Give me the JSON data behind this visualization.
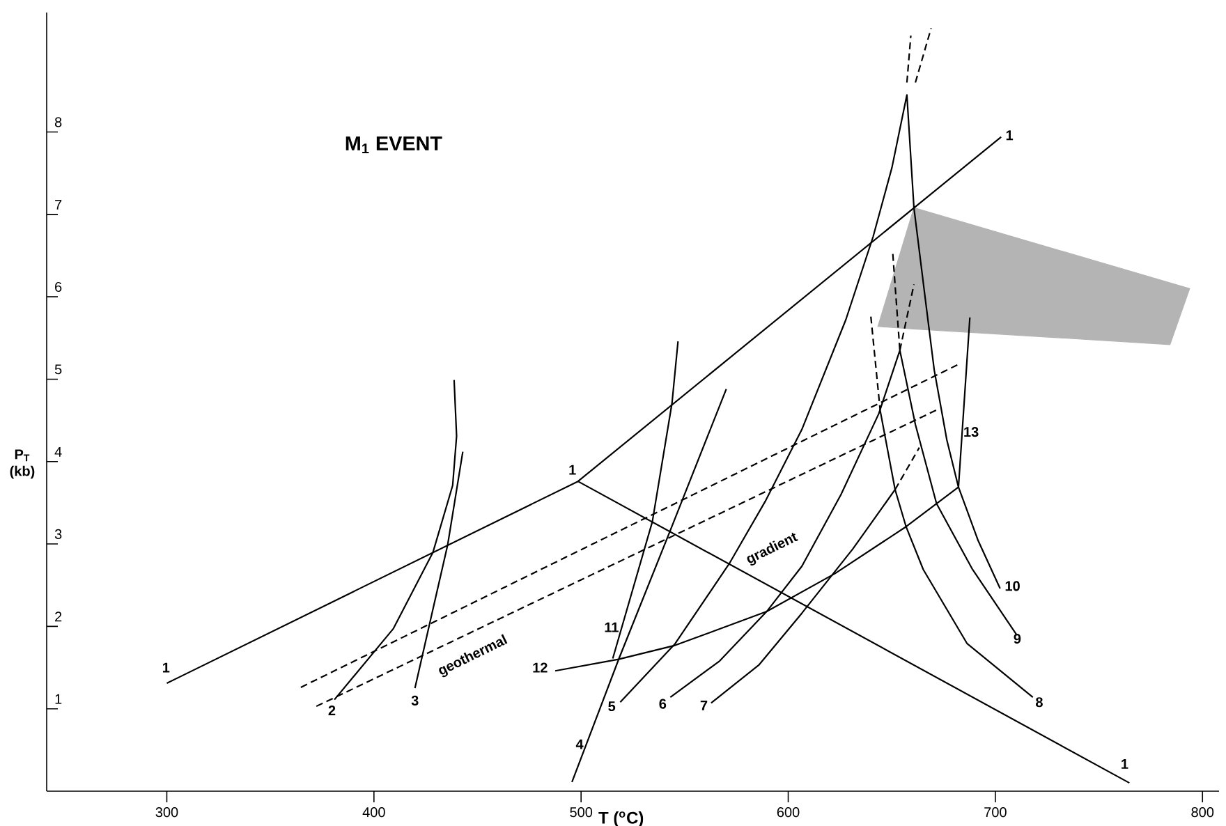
{
  "chart_data": {
    "type": "line",
    "title": "M$_{1}$ EVENT",
    "xlabel": "T  ($^{o}$C)",
    "ylabel": "P$_{T}$ (kb)",
    "xlim": [
      242,
      808
    ],
    "ylim": [
      0,
      9.45
    ],
    "xticks": [
      300,
      400,
      500,
      600,
      700,
      800
    ],
    "yticks": [
      1,
      2,
      3,
      4,
      5,
      6,
      7,
      8
    ],
    "series": [
      {
        "color": "#000000",
        "x": [
          300,
          498.5,
          702.8
        ],
        "values": [
          1.31,
          3.76,
          7.94
        ]
      },
      {
        "color": "#000000",
        "x": [
          498.5,
          764.7
        ],
        "values": [
          3.76,
          0.1
        ]
      },
      {
        "color": "#000000",
        "x": [
          380.9,
          409.3,
          428.5,
          438.0,
          439.9,
          438.7
        ],
        "values": [
          1.11,
          1.97,
          2.9,
          3.71,
          4.31,
          4.99
        ]
      },
      {
        "color": "#000000",
        "x": [
          419.8,
          428.5,
          435.6,
          442.9
        ],
        "values": [
          1.25,
          2.21,
          2.99,
          4.12
        ]
      },
      {
        "color": "#000000",
        "x": [
          495.6,
          518.3,
          543.0,
          570.1
        ],
        "values": [
          0.11,
          1.61,
          3.16,
          4.88
        ]
      },
      {
        "color": "#000000",
        "x": [
          518.9,
          545.4,
          571.5,
          589.2,
          606.6,
          627.8,
          641.0,
          650.1,
          657.3,
          660.7,
          666.0,
          670.5,
          676.6,
          682.2,
          691.7,
          702.3
        ],
        "values": [
          1.08,
          1.79,
          2.76,
          3.53,
          4.39,
          5.72,
          6.73,
          7.57,
          8.45,
          7.08,
          6.01,
          5.11,
          4.26,
          3.69,
          3.04,
          2.46
        ]
      },
      {
        "color": "#000000",
        "line_style": "dashed",
        "x": [
          657.3,
          659.2
        ],
        "values": [
          8.6,
          9.17
        ]
      },
      {
        "color": "#000000",
        "line_style": "dashed",
        "x": [
          661.4,
          669.0
        ],
        "values": [
          8.6,
          9.26
        ]
      },
      {
        "color": "#000000",
        "x": [
          543.1,
          566.9,
          589.6,
          606.6,
          625.5,
          643.7,
          653.9,
          661.4,
          671.6,
          689.0,
          710.2
        ],
        "values": [
          1.14,
          1.58,
          2.18,
          2.73,
          3.6,
          4.58,
          5.35,
          4.45,
          3.49,
          2.69,
          1.9
        ]
      },
      {
        "color": "#000000",
        "line_style": "dashed",
        "x": [
          653.9,
          660.7
        ],
        "values": [
          5.35,
          6.15
        ]
      },
      {
        "color": "#000000",
        "x": [
          562.8,
          585.8,
          606.6,
          631.2,
          651.6
        ],
        "values": [
          1.07,
          1.53,
          2.16,
          2.94,
          3.66
        ]
      },
      {
        "color": "#000000",
        "line_style": "dashed",
        "x": [
          651.6,
          663.3
        ],
        "values": [
          3.66,
          4.17
        ]
      },
      {
        "color": "#000000",
        "x": [
          644.4,
          651.6,
          656.9,
          665.2,
          686.4,
          718.1
        ],
        "values": [
          4.62,
          3.66,
          3.21,
          2.69,
          1.79,
          1.14
        ]
      },
      {
        "color": "#000000",
        "line_style": "dashed",
        "x": [
          639.9,
          644.4
        ],
        "values": [
          5.76,
          4.62
        ]
      },
      {
        "color": "#000000",
        "line_style": "dashed",
        "x": [
          650.5,
          653.9
        ],
        "values": [
          6.52,
          5.35
        ]
      },
      {
        "color": "#000000",
        "x": [
          515.3,
          534.4,
          543.9,
          546.8
        ],
        "values": [
          1.61,
          3.27,
          4.71,
          5.46
        ]
      },
      {
        "color": "#000000",
        "x": [
          487.5,
          518.1,
          545.4,
          589.6,
          622.5,
          656.9,
          682.2,
          687.7
        ],
        "values": [
          1.46,
          1.6,
          1.77,
          2.18,
          2.64,
          3.21,
          3.69,
          5.75
        ]
      },
      {
        "color": "#000000",
        "line_style": "dashed",
        "x": [
          364.7,
          682.2
        ],
        "values": [
          1.26,
          5.18
        ]
      },
      {
        "color": "#000000",
        "line_style": "dashed",
        "x": [
          372.2,
          672.8
        ],
        "values": [
          1.03,
          4.64
        ]
      },
      {
        "color": "#b4b4b4",
        "x": [
          643.3,
          660.7,
          784.3,
          793.8
        ],
        "values": [
          null,
          null,
          null,
          null
        ],
        "lower": [
          5.64,
          5.61,
          5.42,
          6.1
        ],
        "upper": [
          5.64,
          7.08,
          6.17,
          6.1
        ]
      }
    ],
    "annotations": [
      "1",
      "1",
      "1",
      "1",
      "2",
      "3",
      "4",
      "5",
      "6",
      "7",
      "8",
      "9",
      "10",
      "11",
      "12",
      "13",
      "geothermal",
      "gradient"
    ]
  }
}
